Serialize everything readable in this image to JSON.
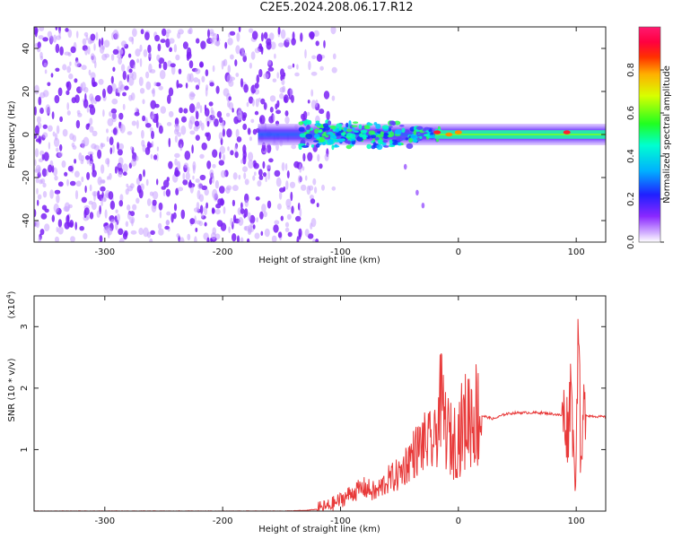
{
  "title": "C2E5.2024.208.06.17.R12",
  "chart_data": [
    {
      "type": "heatmap",
      "xlabel": "Height of straight line (km)",
      "ylabel": "Frequency (Hz)",
      "xlim": [
        -360,
        125
      ],
      "ylim": [
        -50,
        50
      ],
      "x_ticks": [
        "-300",
        "-200",
        "-100",
        "0",
        "100"
      ],
      "x_tick_values": [
        -300,
        -200,
        -100,
        0,
        100
      ],
      "y_ticks": [
        "-40",
        "-20",
        "0",
        "20",
        "40"
      ],
      "y_tick_values": [
        -40,
        -20,
        0,
        20,
        40
      ],
      "colorbar": {
        "label": "Normalized spectral amplitude",
        "range": [
          0,
          1
        ],
        "ticks": [
          "0.0",
          "0.2",
          "0.4",
          "0.6",
          "0.8"
        ],
        "tick_values": [
          0,
          0.2,
          0.4,
          0.6,
          0.8
        ]
      },
      "regions": [
        {
          "x": [
            -360,
            -130
          ],
          "y": [
            -50,
            50
          ],
          "amplitude": "noise 0.0-0.25"
        },
        {
          "x": [
            -170,
            125
          ],
          "center_frequency": 0,
          "half_width": 5,
          "amplitude": "0.2-0.5"
        },
        {
          "x": [
            -20,
            125
          ],
          "center_frequency": 0,
          "half_width": 2,
          "amplitude": "0.4-0.9"
        }
      ],
      "peaks": [
        {
          "x": -18,
          "y": 1,
          "amplitude": 0.9
        },
        {
          "x": -8,
          "y": 0,
          "amplitude": 0.85
        },
        {
          "x": 0,
          "y": 1,
          "amplitude": 0.8
        },
        {
          "x": 92,
          "y": 1,
          "amplitude": 0.95
        }
      ],
      "side_trace": [
        {
          "x": -45,
          "y": -15
        },
        {
          "x": -35,
          "y": -27
        },
        {
          "x": -30,
          "y": -33
        }
      ]
    },
    {
      "type": "line",
      "xlabel": "Height of straight line (km)",
      "ylabel": "SNR (10 * v/v)",
      "multiplier": "(x10",
      "multiplier_exp": "4",
      "multiplier_close": ")",
      "xlim": [
        -360,
        125
      ],
      "ylim": [
        0,
        3.5
      ],
      "x_ticks": [
        "-300",
        "-200",
        "-100",
        "0",
        "100"
      ],
      "x_tick_values": [
        -300,
        -200,
        -100,
        0,
        100
      ],
      "y_ticks": [
        "1",
        "2",
        "3"
      ],
      "y_tick_values": [
        1,
        2,
        3
      ],
      "color": "#e83a3a",
      "series": [
        {
          "x": [
            -360,
            -250,
            -150,
            -130,
            -120,
            -110,
            -100,
            -90,
            -80,
            -70,
            -60,
            -50,
            -40,
            -30,
            -20,
            -15,
            -10,
            -5,
            0,
            10,
            20,
            30,
            40,
            50,
            60,
            70,
            80,
            90,
            93,
            96,
            98,
            100,
            102,
            104,
            106,
            110,
            125
          ],
          "y": [
            0.0,
            0.0,
            0.0,
            0.01,
            0.03,
            0.08,
            0.18,
            0.3,
            0.38,
            0.3,
            0.5,
            0.6,
            0.9,
            1.1,
            1.1,
            1.8,
            1.3,
            1.1,
            1.25,
            1.6,
            1.55,
            1.5,
            1.58,
            1.6,
            1.6,
            1.6,
            1.58,
            1.55,
            1.3,
            2.3,
            0.6,
            1.1,
            3.3,
            0.3,
            1.6,
            1.55,
            1.53
          ]
        }
      ]
    }
  ]
}
